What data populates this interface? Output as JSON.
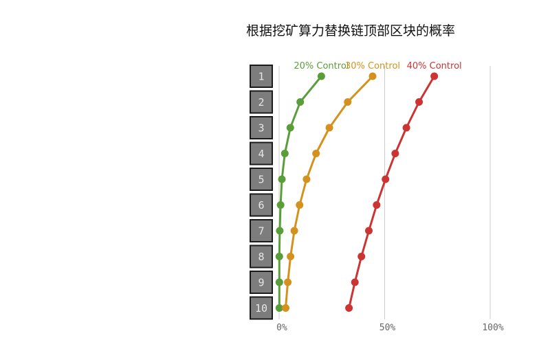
{
  "chart_data": {
    "type": "line",
    "title": "根据挖矿算力替换链顶部区块的概率",
    "categories": [
      "1",
      "2",
      "3",
      "4",
      "5",
      "6",
      "7",
      "8",
      "9",
      "10"
    ],
    "xlim": [
      0,
      100
    ],
    "x_ticks": [
      {
        "value": 0,
        "label": "0%"
      },
      {
        "value": 50,
        "label": "50%"
      },
      {
        "value": 100,
        "label": "100%"
      }
    ],
    "grid": true,
    "series": [
      {
        "name": "20% Control",
        "color": "#5a9e3a",
        "values": [
          20,
          10,
          5.3,
          2.7,
          1.3,
          0.7,
          0.3,
          0.1,
          0.1,
          0.1
        ]
      },
      {
        "name": "30% Control",
        "color": "#d4911e",
        "values": [
          44.3,
          32.5,
          23.8,
          17.5,
          13,
          9.7,
          7.2,
          5.4,
          4.1,
          3.1
        ]
      },
      {
        "name": "40% Control",
        "color": "#cc3333",
        "values": [
          73.5,
          66.3,
          60.3,
          55,
          50.4,
          46.2,
          42.5,
          39,
          35.9,
          33.1
        ]
      }
    ]
  }
}
